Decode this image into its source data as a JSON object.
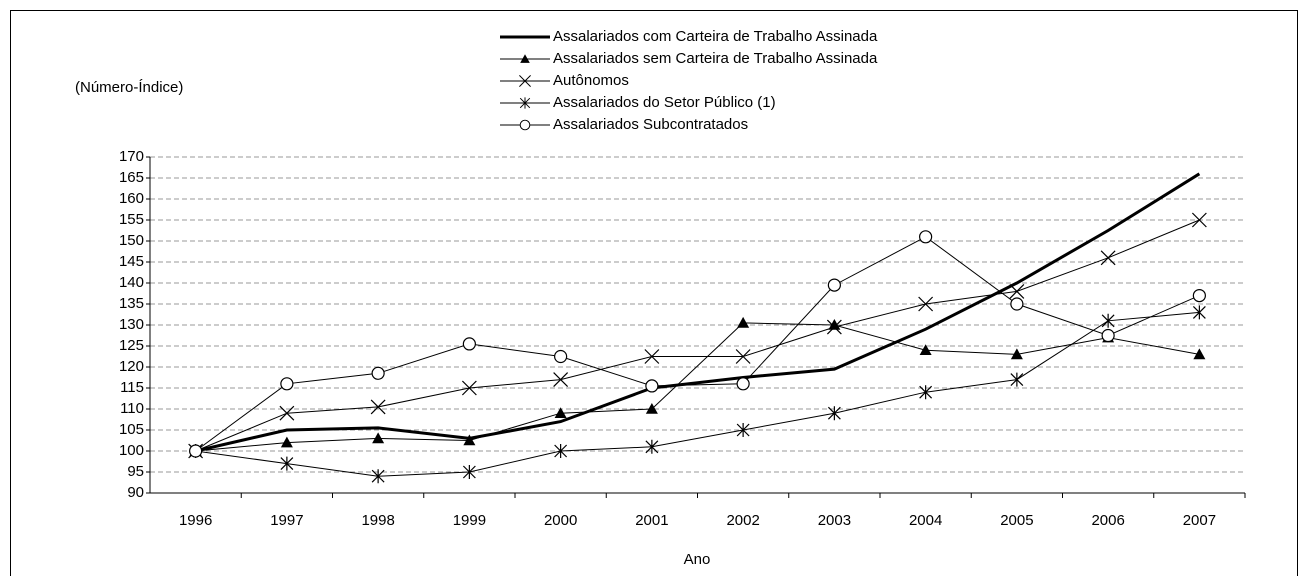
{
  "chart_data": {
    "type": "line",
    "y_label": "(Número-Índice)",
    "x_label": "Ano",
    "categories": [
      "1996",
      "1997",
      "1998",
      "1999",
      "2000",
      "2001",
      "2002",
      "2003",
      "2004",
      "2005",
      "2006",
      "2007"
    ],
    "series": [
      {
        "name": "Assalariados com Carteira de Trabalho Assinada",
        "color": "#000000",
        "marker": "none",
        "line_width": 3,
        "values": [
          100,
          105,
          105.5,
          103,
          107,
          115,
          117.5,
          119.5,
          129,
          140,
          152.5,
          166
        ]
      },
      {
        "name": "Assalariados sem Carteira de Trabalho Assinada",
        "color": "#000000",
        "marker": "triangle",
        "line_width": 1,
        "values": [
          100,
          102,
          103,
          102.5,
          109,
          110,
          130.5,
          130,
          124,
          123,
          127,
          123
        ]
      },
      {
        "name": "Autônomos",
        "color": "#000000",
        "marker": "x",
        "line_width": 1,
        "values": [
          100,
          109,
          110.5,
          115,
          117,
          122.5,
          122.5,
          129.5,
          135,
          138,
          146,
          155
        ]
      },
      {
        "name": "Assalariados do Setor Público (1)",
        "color": "#000000",
        "marker": "star",
        "line_width": 1,
        "values": [
          100,
          97,
          94,
          95,
          100,
          101,
          105,
          109,
          114,
          117,
          131,
          133
        ]
      },
      {
        "name": "Assalariados Subcontratados",
        "color": "#000000",
        "marker": "circle",
        "line_width": 1,
        "values": [
          100,
          116,
          118.5,
          125.5,
          122.5,
          115.5,
          116,
          139.5,
          151,
          135,
          127.5,
          137
        ]
      }
    ],
    "ylim": [
      90,
      170
    ],
    "yticks": [
      90,
      95,
      100,
      105,
      110,
      115,
      120,
      125,
      130,
      135,
      140,
      145,
      150,
      155,
      160,
      165,
      170
    ],
    "grid": true
  }
}
